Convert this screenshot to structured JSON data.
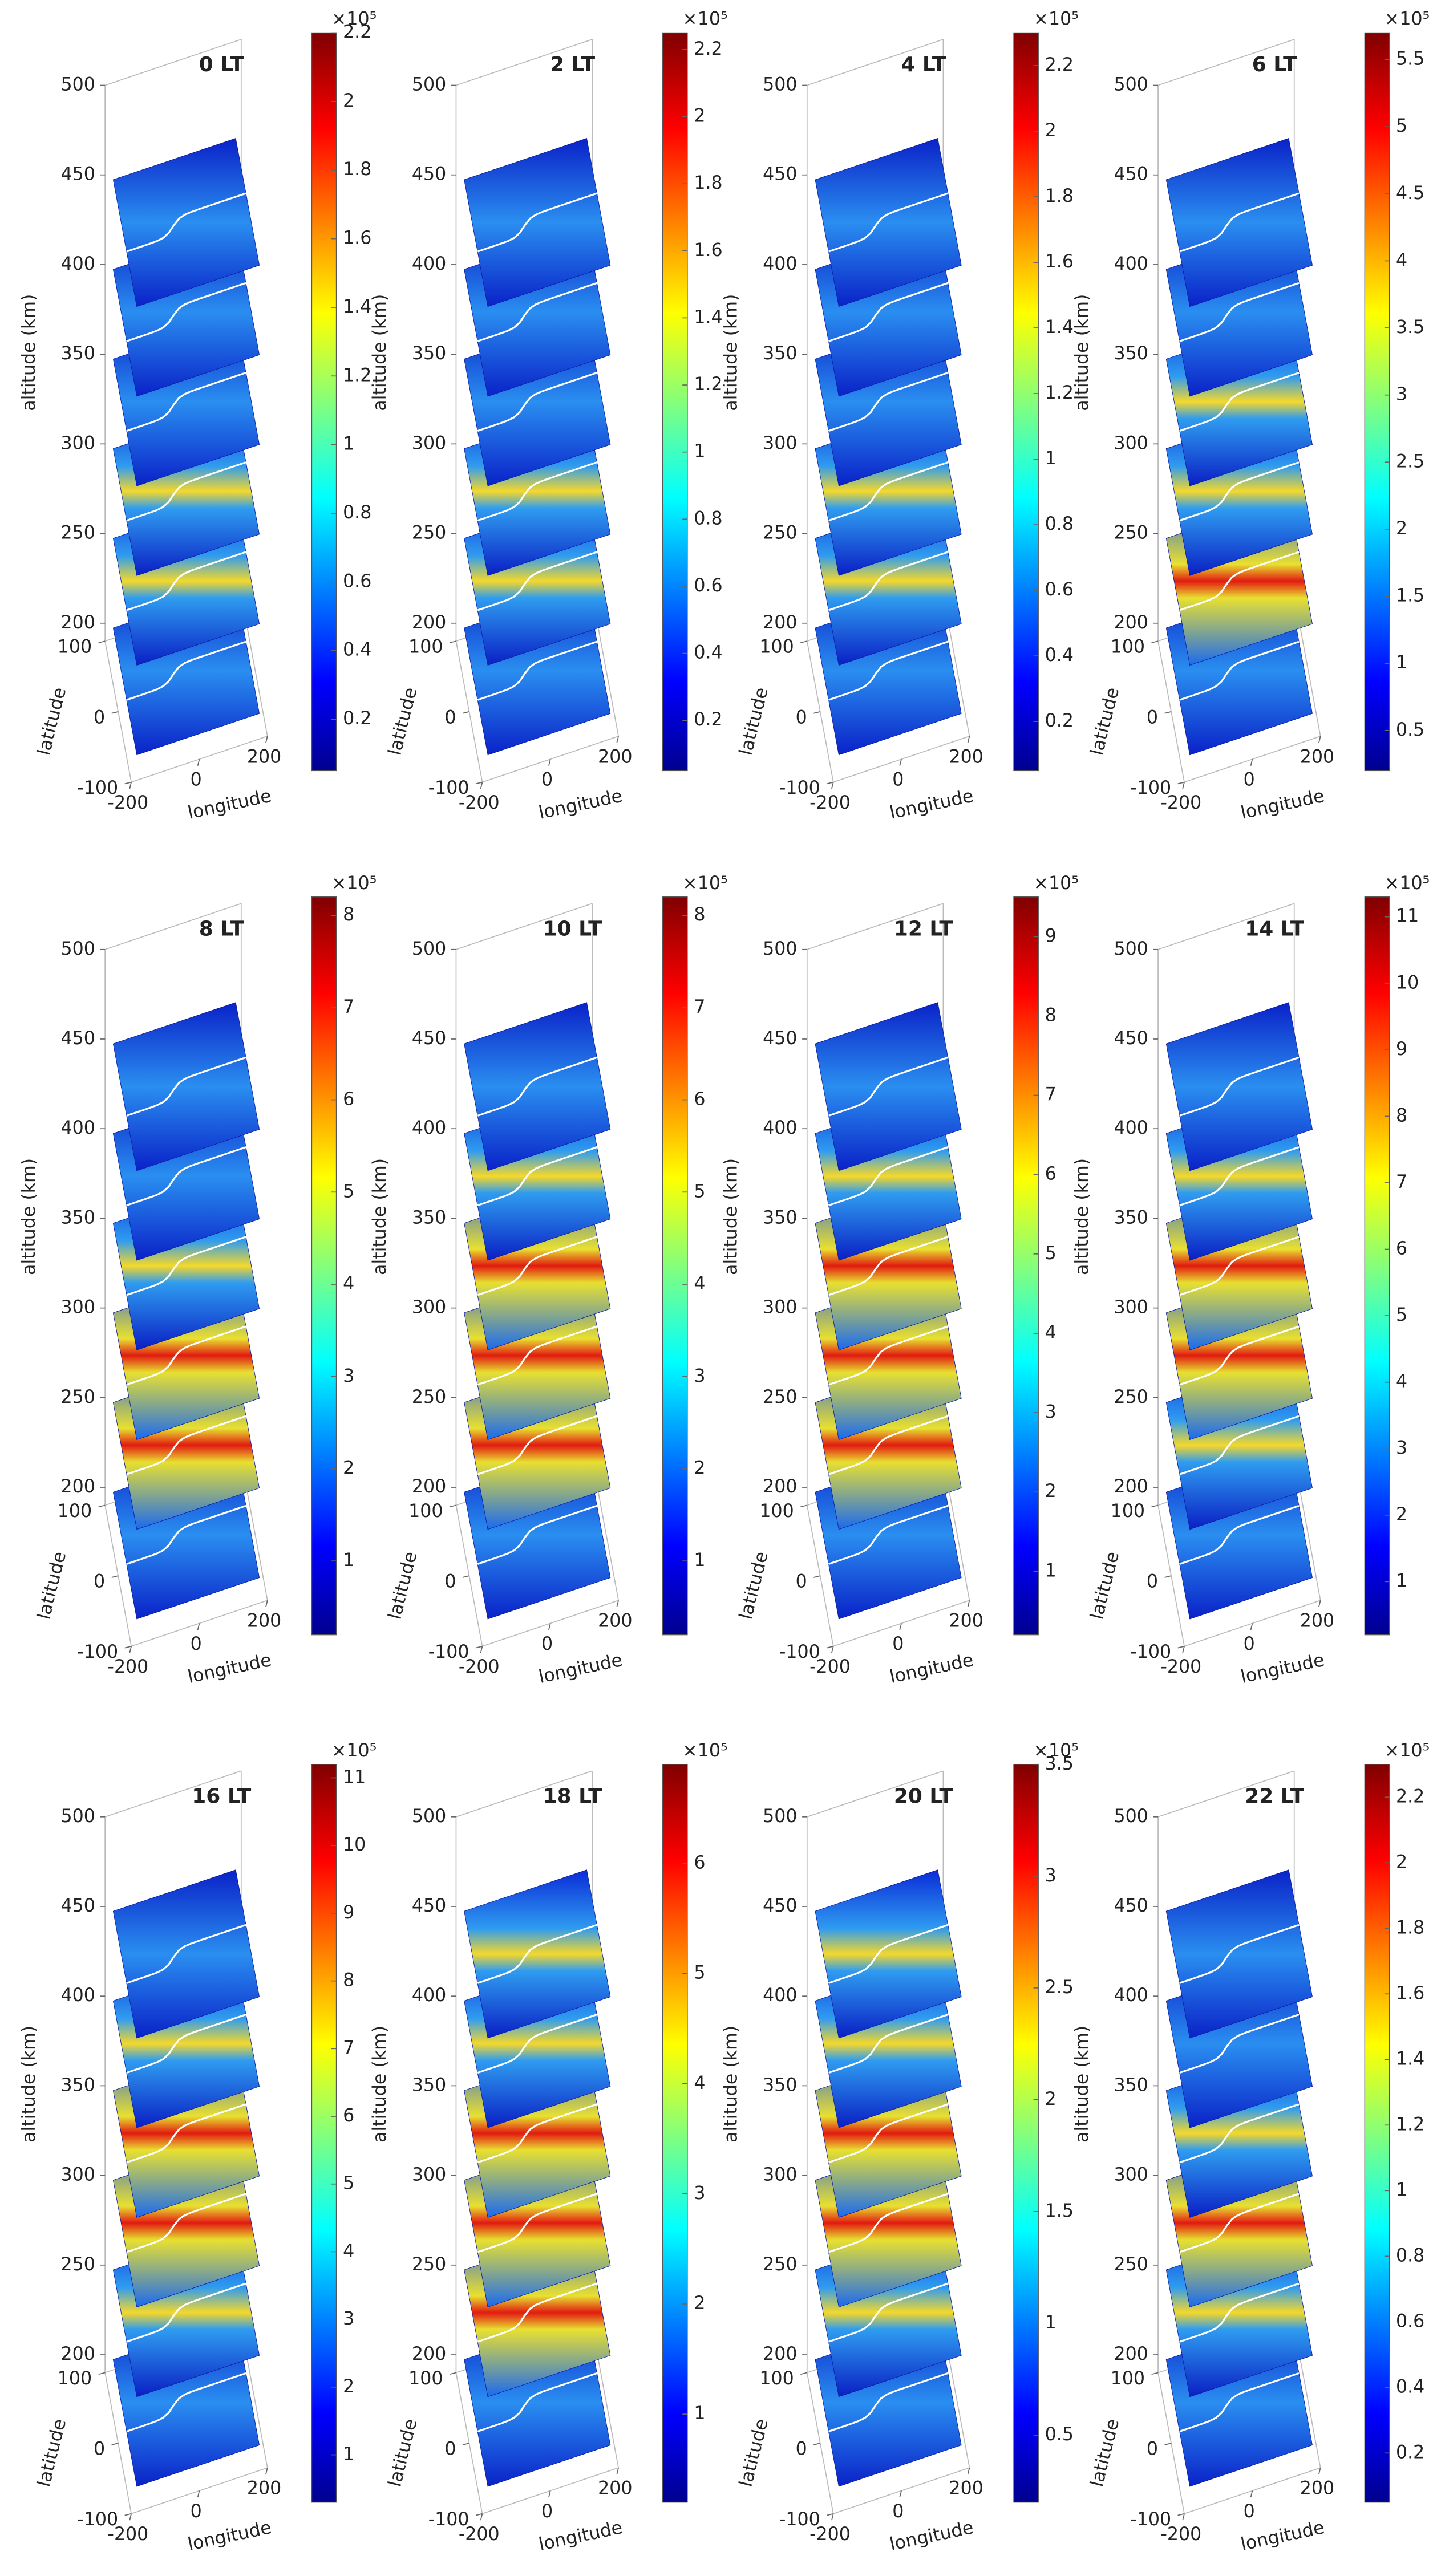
{
  "chart_data": [
    {
      "type": "slice3d",
      "title": "0 LT",
      "xlabel": "longitude",
      "ylabel": "latitude",
      "zlabel": "altitude (km)",
      "xlim": [
        -200,
        200
      ],
      "ylim": [
        -100,
        100
      ],
      "zlim": [
        190,
        500
      ],
      "xticks": [
        -200,
        0,
        200
      ],
      "yticks": [
        -100,
        0,
        100
      ],
      "zticks": [
        200,
        250,
        300,
        350,
        400,
        450,
        500
      ],
      "clim": [
        0.05,
        2.2
      ],
      "cticks": [
        0.2,
        0.4,
        0.6,
        0.8,
        1,
        1.2,
        1.4,
        1.6,
        1.8,
        2,
        2.2
      ],
      "colorbar_label": "×10⁵"
    },
    {
      "type": "slice3d",
      "title": "2 LT",
      "xlabel": "longitude",
      "ylabel": "latitude",
      "zlabel": "altitude (km)",
      "xlim": [
        -200,
        200
      ],
      "ylim": [
        -100,
        100
      ],
      "zlim": [
        190,
        500
      ],
      "xticks": [
        -200,
        0,
        200
      ],
      "yticks": [
        -100,
        0,
        100
      ],
      "zticks": [
        200,
        250,
        300,
        350,
        400,
        450,
        500
      ],
      "clim": [
        0.05,
        2.25
      ],
      "cticks": [
        0.2,
        0.4,
        0.6,
        0.8,
        1,
        1.2,
        1.4,
        1.6,
        1.8,
        2,
        2.2
      ],
      "colorbar_label": "×10⁵"
    },
    {
      "type": "slice3d",
      "title": "4 LT",
      "xlabel": "longitude",
      "ylabel": "latitude",
      "zlabel": "altitude (km)",
      "xlim": [
        -200,
        200
      ],
      "ylim": [
        -100,
        100
      ],
      "zlim": [
        190,
        500
      ],
      "xticks": [
        -200,
        0,
        200
      ],
      "yticks": [
        -100,
        0,
        100
      ],
      "zticks": [
        200,
        250,
        300,
        350,
        400,
        450,
        500
      ],
      "clim": [
        0.05,
        2.3
      ],
      "cticks": [
        0.2,
        0.4,
        0.6,
        0.8,
        1,
        1.2,
        1.4,
        1.6,
        1.8,
        2,
        2.2
      ],
      "colorbar_label": "×10⁵"
    },
    {
      "type": "slice3d",
      "title": "6 LT",
      "xlabel": "longitude",
      "ylabel": "latitude",
      "zlabel": "altitude (km)",
      "xlim": [
        -200,
        200
      ],
      "ylim": [
        -100,
        100
      ],
      "zlim": [
        190,
        500
      ],
      "xticks": [
        -200,
        0,
        200
      ],
      "yticks": [
        -100,
        0,
        100
      ],
      "zticks": [
        200,
        250,
        300,
        350,
        400,
        450,
        500
      ],
      "clim": [
        0.2,
        5.7
      ],
      "cticks": [
        0.5,
        1,
        1.5,
        2,
        2.5,
        3,
        3.5,
        4,
        4.5,
        5,
        5.5
      ],
      "colorbar_label": "×10⁵"
    },
    {
      "type": "slice3d",
      "title": "8 LT",
      "xlabel": "longitude",
      "ylabel": "latitude",
      "zlabel": "altitude (km)",
      "xlim": [
        -200,
        200
      ],
      "ylim": [
        -100,
        100
      ],
      "zlim": [
        190,
        500
      ],
      "xticks": [
        -200,
        0,
        200
      ],
      "yticks": [
        -100,
        0,
        100
      ],
      "zticks": [
        200,
        250,
        300,
        350,
        400,
        450,
        500
      ],
      "clim": [
        0.2,
        8.2
      ],
      "cticks": [
        1,
        2,
        3,
        4,
        5,
        6,
        7,
        8
      ],
      "colorbar_label": "×10⁵"
    },
    {
      "type": "slice3d",
      "title": "10 LT",
      "xlabel": "longitude",
      "ylabel": "latitude",
      "zlabel": "altitude (km)",
      "xlim": [
        -200,
        200
      ],
      "ylim": [
        -100,
        100
      ],
      "zlim": [
        190,
        500
      ],
      "xticks": [
        -200,
        0,
        200
      ],
      "yticks": [
        -100,
        0,
        100
      ],
      "zticks": [
        200,
        250,
        300,
        350,
        400,
        450,
        500
      ],
      "clim": [
        0.2,
        8.2
      ],
      "cticks": [
        1,
        2,
        3,
        4,
        5,
        6,
        7,
        8
      ],
      "colorbar_label": "×10⁵"
    },
    {
      "type": "slice3d",
      "title": "12 LT",
      "xlabel": "longitude",
      "ylabel": "latitude",
      "zlabel": "altitude (km)",
      "xlim": [
        -200,
        200
      ],
      "ylim": [
        -100,
        100
      ],
      "zlim": [
        190,
        500
      ],
      "xticks": [
        -200,
        0,
        200
      ],
      "yticks": [
        -100,
        0,
        100
      ],
      "zticks": [
        200,
        250,
        300,
        350,
        400,
        450,
        500
      ],
      "clim": [
        0.2,
        9.5
      ],
      "cticks": [
        1,
        2,
        3,
        4,
        5,
        6,
        7,
        8,
        9
      ],
      "colorbar_label": "×10⁵"
    },
    {
      "type": "slice3d",
      "title": "14 LT",
      "xlabel": "longitude",
      "ylabel": "latitude",
      "zlabel": "altitude (km)",
      "xlim": [
        -200,
        200
      ],
      "ylim": [
        -100,
        100
      ],
      "zlim": [
        190,
        500
      ],
      "xticks": [
        -200,
        0,
        200
      ],
      "yticks": [
        -100,
        0,
        100
      ],
      "zticks": [
        200,
        250,
        300,
        350,
        400,
        450,
        500
      ],
      "clim": [
        0.2,
        11.3
      ],
      "cticks": [
        1,
        2,
        3,
        4,
        5,
        6,
        7,
        8,
        9,
        10,
        11
      ],
      "colorbar_label": "×10⁵"
    },
    {
      "type": "slice3d",
      "title": "16 LT",
      "xlabel": "longitude",
      "ylabel": "latitude",
      "zlabel": "altitude (km)",
      "xlim": [
        -200,
        200
      ],
      "ylim": [
        -100,
        100
      ],
      "zlim": [
        190,
        500
      ],
      "xticks": [
        -200,
        0,
        200
      ],
      "yticks": [
        -100,
        0,
        100
      ],
      "zticks": [
        200,
        250,
        300,
        350,
        400,
        450,
        500
      ],
      "clim": [
        0.3,
        11.2
      ],
      "cticks": [
        1,
        2,
        3,
        4,
        5,
        6,
        7,
        8,
        9,
        10,
        11
      ],
      "colorbar_label": "×10⁵"
    },
    {
      "type": "slice3d",
      "title": "18 LT",
      "xlabel": "longitude",
      "ylabel": "latitude",
      "zlabel": "altitude (km)",
      "xlim": [
        -200,
        200
      ],
      "ylim": [
        -100,
        100
      ],
      "zlim": [
        190,
        500
      ],
      "xticks": [
        -200,
        0,
        200
      ],
      "yticks": [
        -100,
        0,
        100
      ],
      "zticks": [
        200,
        250,
        300,
        350,
        400,
        450,
        500
      ],
      "clim": [
        0.2,
        6.9
      ],
      "cticks": [
        1,
        2,
        3,
        4,
        5,
        6
      ],
      "colorbar_label": "×10⁵"
    },
    {
      "type": "slice3d",
      "title": "20 LT",
      "xlabel": "longitude",
      "ylabel": "latitude",
      "zlabel": "altitude (km)",
      "xlim": [
        -200,
        200
      ],
      "ylim": [
        -100,
        100
      ],
      "zlim": [
        190,
        500
      ],
      "xticks": [
        -200,
        0,
        200
      ],
      "yticks": [
        -100,
        0,
        100
      ],
      "zticks": [
        200,
        250,
        300,
        350,
        400,
        450,
        500
      ],
      "clim": [
        0.2,
        3.5
      ],
      "cticks": [
        0.5,
        1,
        1.5,
        2,
        2.5,
        3,
        3.5
      ],
      "colorbar_label": "×10⁵"
    },
    {
      "type": "slice3d",
      "title": "22 LT",
      "xlabel": "longitude",
      "ylabel": "latitude",
      "zlabel": "altitude (km)",
      "xlim": [
        -200,
        200
      ],
      "ylim": [
        -100,
        100
      ],
      "zlim": [
        190,
        500
      ],
      "xticks": [
        -200,
        0,
        200
      ],
      "yticks": [
        -100,
        0,
        100
      ],
      "zticks": [
        200,
        250,
        300,
        350,
        400,
        450,
        500
      ],
      "clim": [
        0.05,
        2.3
      ],
      "cticks": [
        0.2,
        0.4,
        0.6,
        0.8,
        1,
        1.2,
        1.4,
        1.6,
        1.8,
        2,
        2.2
      ],
      "colorbar_label": "×10⁵"
    }
  ]
}
